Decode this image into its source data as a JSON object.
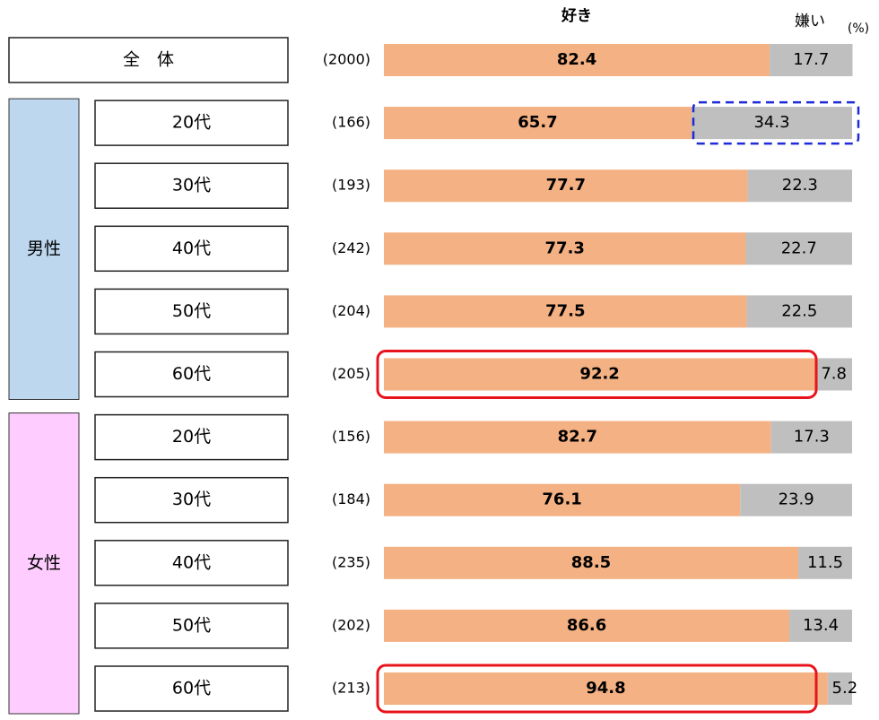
{
  "chart_data": {
    "type": "stacked-barh",
    "unit": "(%)",
    "categories": [
      "全　体",
      "20代",
      "30代",
      "40代",
      "50代",
      "60代",
      "20代",
      "30代",
      "40代",
      "50代",
      "60代"
    ],
    "category_groups": [
      null,
      "男性",
      "男性",
      "男性",
      "男性",
      "男性",
      "女性",
      "女性",
      "女性",
      "女性",
      "女性"
    ],
    "group_colors": {
      "男性": "#bdd7ee",
      "女性": "#ffccff"
    },
    "sample_sizes": [
      "(2000)",
      "(166)",
      "(193)",
      "(242)",
      "(204)",
      "(205)",
      "(156)",
      "(184)",
      "(235)",
      "(202)",
      "(213)"
    ],
    "series": [
      {
        "name": "好き",
        "color": "#f4b183",
        "values": [
          82.4,
          65.7,
          77.7,
          77.3,
          77.5,
          92.2,
          82.7,
          76.1,
          88.5,
          86.6,
          94.8
        ]
      },
      {
        "name": "嫌い",
        "color": "#bfbfbf",
        "values": [
          17.7,
          34.3,
          22.3,
          22.7,
          22.5,
          7.8,
          17.3,
          23.9,
          11.5,
          13.4,
          5.2
        ]
      }
    ],
    "xlim": [
      0,
      100
    ]
  }
}
